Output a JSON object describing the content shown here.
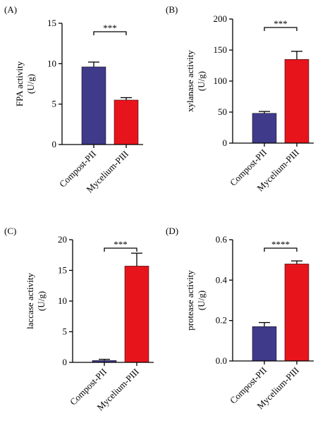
{
  "chart_data": [
    {
      "type": "bar",
      "panel": "(A)",
      "ylabel": [
        "FPA activity",
        "(U/g)"
      ],
      "categories": [
        "Compost-PII",
        "Mycelium-PIII"
      ],
      "values": [
        9.6,
        5.5
      ],
      "errors": [
        0.6,
        0.3
      ],
      "colors": [
        "#3f3a8a",
        "#e8141c"
      ],
      "ylim": [
        0,
        15
      ],
      "yticks": [
        0,
        5,
        10,
        15
      ],
      "significance": "***"
    },
    {
      "type": "bar",
      "panel": "(B)",
      "ylabel": [
        "xylanase activity",
        "(U/g)"
      ],
      "categories": [
        "Compost-PII",
        "Mycelium-PIII"
      ],
      "values": [
        48,
        135
      ],
      "errors": [
        3,
        13
      ],
      "colors": [
        "#3f3a8a",
        "#e8141c"
      ],
      "ylim": [
        0,
        200
      ],
      "yticks": [
        0,
        50,
        100,
        150,
        200
      ],
      "significance": "***"
    },
    {
      "type": "bar",
      "panel": "(C)",
      "ylabel": [
        "laccase activity",
        "(U/g)"
      ],
      "categories": [
        "Compost-PII",
        "Mycelium-PIII"
      ],
      "values": [
        0.3,
        15.7
      ],
      "errors": [
        0.2,
        2.1
      ],
      "colors": [
        "#3f3a8a",
        "#e8141c"
      ],
      "ylim": [
        0,
        20
      ],
      "yticks": [
        0,
        5,
        10,
        15,
        20
      ],
      "significance": "***"
    },
    {
      "type": "bar",
      "panel": "(D)",
      "ylabel": [
        "protease activity",
        "(U/g)"
      ],
      "categories": [
        "Compost-PII",
        "Mycelium-PIII"
      ],
      "values": [
        0.17,
        0.48
      ],
      "errors": [
        0.02,
        0.015
      ],
      "colors": [
        "#3f3a8a",
        "#e8141c"
      ],
      "ylim": [
        0,
        0.6
      ],
      "yticks": [
        {
          "value": 0,
          "label": "0.0"
        },
        0.2,
        0.4,
        0.6
      ],
      "significance": "****"
    }
  ]
}
